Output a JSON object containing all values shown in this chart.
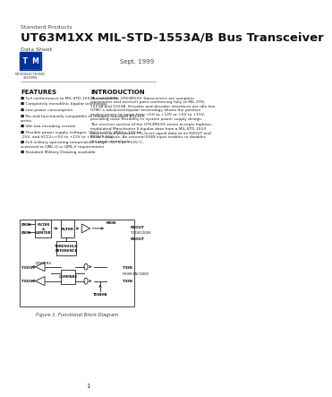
{
  "title": "UT63M1XX MIL-STD-1553A/B Bus Transceiver",
  "subtitle": "Standard Products",
  "subtitle2": "Data Sheet",
  "company": "UTMC",
  "date": "Sept. 1999",
  "bg_color": "#ffffff",
  "features_title": "FEATURES",
  "intro_title": "INTRODUCTION",
  "figure_caption": "Figure 1. Functional Block Diagram",
  "page_number": "1",
  "feature_texts": [
    "Full conformance to MIL-STD-1553A and 1553B",
    "Completely monolithic bipolar technology",
    "Low power consumption",
    "Pin and functionally compatible to industry standard 6313XX\nseries",
    "Idle low encoding version",
    "Flexible power supply voltages: VCC1=+5V, VEE1=-12V or\n-15V, and VCC2=+5V to +12V or +5V to +15V",
    "Full military operating temperature range, -55°C to +125°C,\nscreened to QML-Q or QML-V requirements",
    "Standard Military Drawing available"
  ],
  "intro1": "The monolithic UT63M1XX Transceivers are complete\ntransmitter and receiver pairs conforming fully to MIL-STD-\n1553A and 1553B. Encoder and decoder interfaces are idle low.\nUTMC's advanced bipolar technology allows the positive\nanalog power to range from +5V to +12V or +5V to +15V,\nproviding more flexibility in system power supply design.",
  "intro2": "The receiver section of the UT63M1XX series accepts biphase-\nmodulated Manchester II bipolar data from a MIL-STD-1553\ndata bus and produces TTL-level signal data at its RXOUT and\nRXOUT outputs. An external RXIN input enables or disables\nthe receiver outputs."
}
